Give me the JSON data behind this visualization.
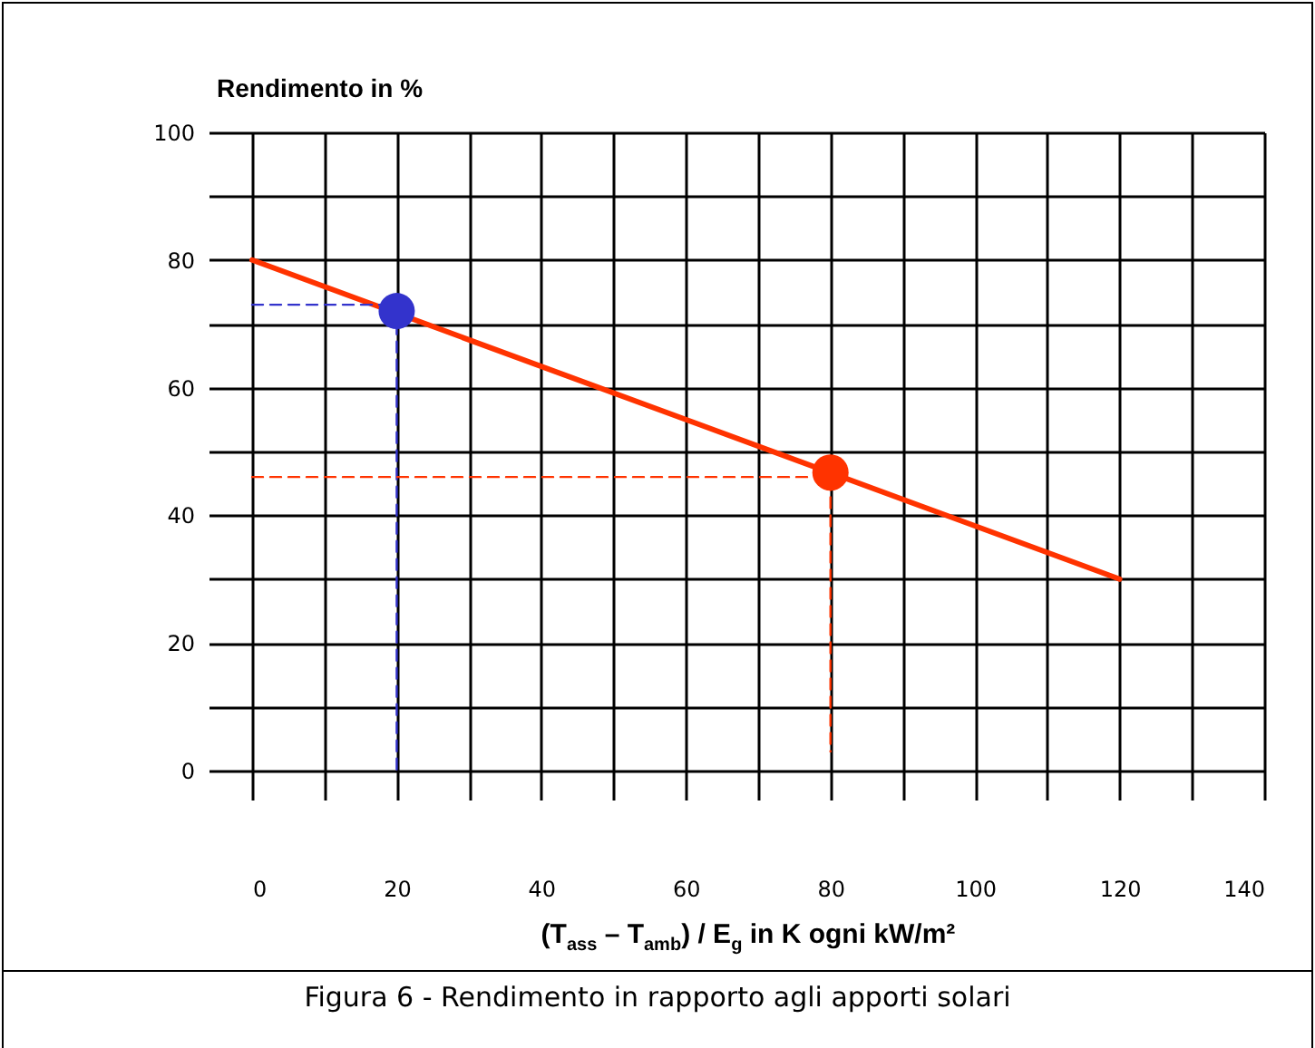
{
  "chart_data": {
    "type": "line",
    "ylabel": "Rendimento in %",
    "xlabel": "(T$_{ass}$ – T$_{amb}$) / E$_{g}$ in K ogni kW/m²",
    "annotations": [
      "Figura 6 - Rendimento in rapporto agli apporti solari"
    ],
    "xlim": [
      0,
      140
    ],
    "xticks": [
      0,
      {
        "value": 10,
        "label": null
      },
      20,
      {
        "value": 30,
        "label": null
      },
      40,
      {
        "value": 50,
        "label": null
      },
      60,
      {
        "value": 70,
        "label": null
      },
      80,
      {
        "value": 90,
        "label": null
      },
      100,
      {
        "value": 110,
        "label": null
      },
      120,
      {
        "value": 130,
        "label": null
      },
      140
    ],
    "ylim": [
      0,
      100
    ],
    "yticks": [
      0,
      {
        "value": 10,
        "label": null
      },
      20,
      {
        "value": 30,
        "label": null
      },
      40,
      {
        "value": 50,
        "label": null
      },
      60,
      {
        "value": 70,
        "label": null
      },
      80,
      {
        "value": 90,
        "label": null
      },
      100
    ],
    "grid": true,
    "series": [
      {
        "color": "#ff3300",
        "line_style": "solid",
        "x": [
          0,
          120
        ],
        "values": [
          80,
          30
        ]
      },
      {
        "color": "#3333cc",
        "line_style": "dashed",
        "x": [
          0,
          20,
          20
        ],
        "values": [
          73,
          73,
          0
        ]
      },
      {
        "color": "#ff3300",
        "line_style": "dashed",
        "x": [
          0,
          80,
          80
        ],
        "values": [
          46,
          46,
          3
        ]
      },
      {
        "type": "scatter",
        "color": "#3333cc",
        "marker": "circle",
        "x": [
          20
        ],
        "values": [
          72
        ]
      },
      {
        "type": "scatter",
        "color": "#ff3300",
        "marker": "circle",
        "x": [
          80
        ],
        "values": [
          46.7
        ]
      }
    ]
  }
}
